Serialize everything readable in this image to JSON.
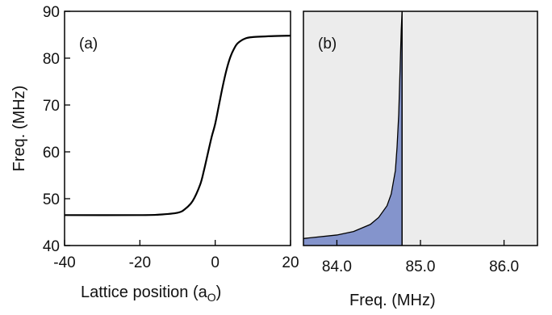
{
  "chart_data": [
    {
      "panel": "(a)",
      "type": "line",
      "xlabel": "Lattice position (a",
      "xlabel_sub": "O",
      "xlabel_close": ")",
      "ylabel": "Freq. (MHz)",
      "xlim": [
        -40,
        20
      ],
      "ylim": [
        40,
        90
      ],
      "xticks": [
        -40,
        -20,
        0,
        20
      ],
      "xtick_labels": [
        "-40",
        "-20",
        "0",
        "20"
      ],
      "yticks": [
        40,
        50,
        60,
        70,
        80,
        90
      ],
      "ytick_labels": [
        "40",
        "50",
        "60",
        "70",
        "80",
        "90"
      ],
      "grid": false,
      "series": [
        {
          "color": "#000000",
          "x": [
            -40,
            -20,
            -15,
            -10,
            -8,
            -6,
            -4,
            -3,
            -2,
            -1,
            0,
            1,
            2,
            3,
            4,
            5,
            6,
            8,
            10,
            15,
            20
          ],
          "y": [
            46.5,
            46.5,
            46.6,
            47.0,
            47.8,
            49.5,
            53.0,
            56.0,
            59.5,
            63.0,
            66.0,
            70.0,
            74.0,
            77.5,
            80.2,
            82.0,
            83.2,
            84.2,
            84.5,
            84.7,
            84.8
          ]
        }
      ]
    },
    {
      "panel": "(b)",
      "type": "area",
      "xlabel": "Freq. (MHz)",
      "ylabel": "",
      "xlim": [
        83.6,
        86.4
      ],
      "xticks": [
        84.0,
        85.0,
        86.0
      ],
      "xtick_labels": [
        "84.0",
        "85.0",
        "86.0"
      ],
      "background_color": "#ececec",
      "fill_color": "#8494cc",
      "line_color": "#000000",
      "grid": false,
      "series": [
        {
          "x": [
            83.6,
            84.0,
            84.2,
            84.4,
            84.5,
            84.6,
            84.65,
            84.7,
            84.72,
            84.74,
            84.75,
            84.76,
            84.77,
            84.78
          ],
          "density": [
            0.03,
            0.045,
            0.06,
            0.09,
            0.12,
            0.17,
            0.22,
            0.32,
            0.42,
            0.56,
            0.68,
            0.8,
            0.92,
            1.0
          ]
        }
      ],
      "cutoff_x": 84.78
    }
  ]
}
